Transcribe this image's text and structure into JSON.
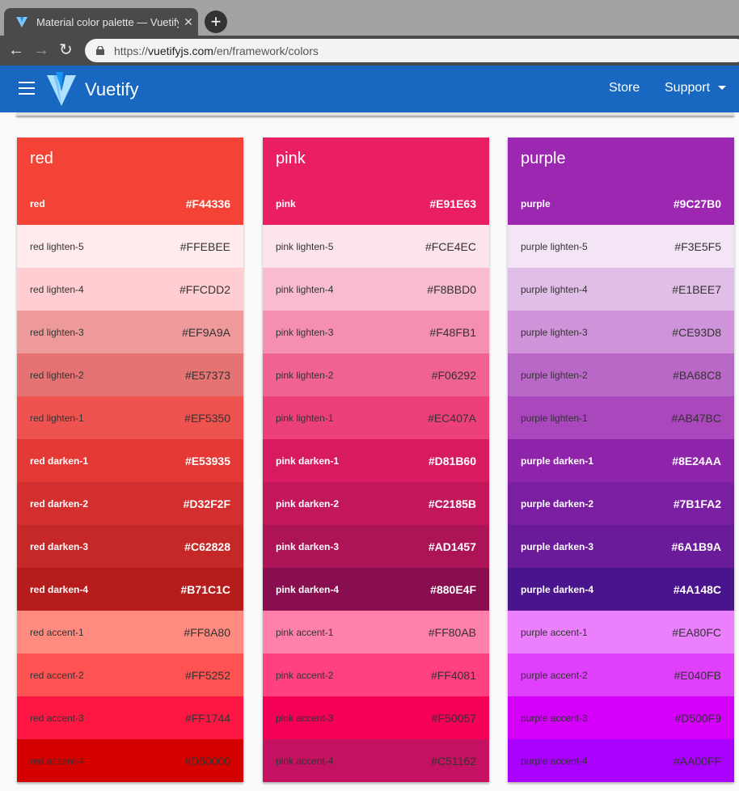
{
  "browser": {
    "tab_title": "Material color palette — Vuetify.js",
    "new_tab": "+",
    "close": "✕",
    "url_scheme": "https://",
    "url_domain": "vuetifyjs.com",
    "url_path": "/en/framework/colors"
  },
  "appbar": {
    "brand": "Vuetify",
    "store": "Store",
    "support": "Support"
  },
  "palettes": [
    {
      "name": "red",
      "swatches": [
        [
          "red",
          "#F44336",
          1
        ],
        [
          "red lighten-5",
          "#FFEBEE",
          0
        ],
        [
          "red lighten-4",
          "#FFCDD2",
          0
        ],
        [
          "red lighten-3",
          "#EF9A9A",
          0
        ],
        [
          "red lighten-2",
          "#E57373",
          0
        ],
        [
          "red lighten-1",
          "#EF5350",
          0
        ],
        [
          "red darken-1",
          "#E53935",
          1
        ],
        [
          "red darken-2",
          "#D32F2F",
          1
        ],
        [
          "red darken-3",
          "#C62828",
          1
        ],
        [
          "red darken-4",
          "#B71C1C",
          1
        ],
        [
          "red accent-1",
          "#FF8A80",
          0
        ],
        [
          "red accent-2",
          "#FF5252",
          0
        ],
        [
          "red accent-3",
          "#FF1744",
          0
        ],
        [
          "red accent-4",
          "#D50000",
          0
        ]
      ]
    },
    {
      "name": "pink",
      "swatches": [
        [
          "pink",
          "#E91E63",
          1
        ],
        [
          "pink lighten-5",
          "#FCE4EC",
          0
        ],
        [
          "pink lighten-4",
          "#F8BBD0",
          0
        ],
        [
          "pink lighten-3",
          "#F48FB1",
          0
        ],
        [
          "pink lighten-2",
          "#F06292",
          0
        ],
        [
          "pink lighten-1",
          "#EC407A",
          0
        ],
        [
          "pink darken-1",
          "#D81B60",
          1
        ],
        [
          "pink darken-2",
          "#C2185B",
          1
        ],
        [
          "pink darken-3",
          "#AD1457",
          1
        ],
        [
          "pink darken-4",
          "#880E4F",
          1
        ],
        [
          "pink accent-1",
          "#FF80AB",
          0
        ],
        [
          "pink accent-2",
          "#FF4081",
          0
        ],
        [
          "pink accent-3",
          "#F50057",
          0
        ],
        [
          "pink accent-4",
          "#C51162",
          0
        ]
      ]
    },
    {
      "name": "purple",
      "swatches": [
        [
          "purple",
          "#9C27B0",
          1
        ],
        [
          "purple lighten-5",
          "#F3E5F5",
          0
        ],
        [
          "purple lighten-4",
          "#E1BEE7",
          0
        ],
        [
          "purple lighten-3",
          "#CE93D8",
          0
        ],
        [
          "purple lighten-2",
          "#BA68C8",
          0
        ],
        [
          "purple lighten-1",
          "#AB47BC",
          0
        ],
        [
          "purple darken-1",
          "#8E24AA",
          1
        ],
        [
          "purple darken-2",
          "#7B1FA2",
          1
        ],
        [
          "purple darken-3",
          "#6A1B9A",
          1
        ],
        [
          "purple darken-4",
          "#4A148C",
          1
        ],
        [
          "purple accent-1",
          "#EA80FC",
          0
        ],
        [
          "purple accent-2",
          "#E040FB",
          0
        ],
        [
          "purple accent-3",
          "#D500F9",
          0
        ],
        [
          "purple accent-4",
          "#AA00FF",
          0
        ]
      ]
    }
  ]
}
